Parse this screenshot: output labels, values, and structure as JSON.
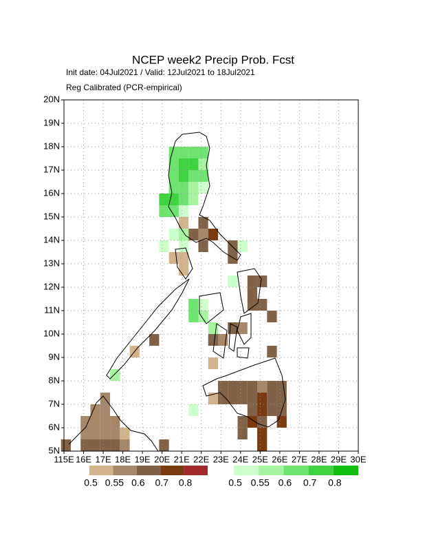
{
  "chart_data": {
    "type": "grid-map",
    "title": "NCEP week2 Precip Prob. Fcst",
    "subtitle": "Init date: 04Jul2021 / Valid: 12Jul2021 to 18Jul2021",
    "note": "Reg Calibrated (PCR-empirical)",
    "xlim": [
      115,
      130
    ],
    "ylim": [
      5,
      20
    ],
    "xticks": [
      {
        "value": 115,
        "label": "115E"
      },
      {
        "value": 116,
        "label": "16E"
      },
      {
        "value": 117,
        "label": "17E"
      },
      {
        "value": 118,
        "label": "18E"
      },
      {
        "value": 119,
        "label": "19E"
      },
      {
        "value": 120,
        "label": "20E"
      },
      {
        "value": 121,
        "label": "21E"
      },
      {
        "value": 122,
        "label": "22E"
      },
      {
        "value": 123,
        "label": "23E"
      },
      {
        "value": 124,
        "label": "24E"
      },
      {
        "value": 125,
        "label": "25E"
      },
      {
        "value": 126,
        "label": "26E"
      },
      {
        "value": 127,
        "label": "27E"
      },
      {
        "value": 128,
        "label": "28E"
      },
      {
        "value": 129,
        "label": "29E"
      },
      {
        "value": 130,
        "label": "30E"
      }
    ],
    "yticks": [
      {
        "value": 5,
        "label": "5N"
      },
      {
        "value": 6,
        "label": "6N"
      },
      {
        "value": 7,
        "label": "7N"
      },
      {
        "value": 8,
        "label": "8N"
      },
      {
        "value": 9,
        "label": "9N"
      },
      {
        "value": 10,
        "label": "10N"
      },
      {
        "value": 11,
        "label": "11N"
      },
      {
        "value": 12,
        "label": "12N"
      },
      {
        "value": 13,
        "label": "13N"
      },
      {
        "value": 14,
        "label": "14N"
      },
      {
        "value": 15,
        "label": "15N"
      },
      {
        "value": 16,
        "label": "16N"
      },
      {
        "value": 17,
        "label": "17N"
      },
      {
        "value": 18,
        "label": "18N"
      },
      {
        "value": 19,
        "label": "19N"
      },
      {
        "value": 20,
        "label": "20N"
      }
    ],
    "grid": true,
    "legend_brown": {
      "levels": [
        0.5,
        0.55,
        0.6,
        0.7,
        0.8
      ],
      "colors": [
        "#d2b48c",
        "#a5876a",
        "#7f6248",
        "#7a3b10",
        "#a12a2a"
      ]
    },
    "legend_green": {
      "levels": [
        0.5,
        0.55,
        0.6,
        0.7,
        0.8
      ],
      "colors": [
        "#ccffcc",
        "#a6f4a0",
        "#6fe36f",
        "#3fd43f",
        "#10bf10"
      ]
    },
    "cells_green": [
      [
        120.6,
        17.75,
        0.6
      ],
      [
        121.1,
        17.75,
        0.6
      ],
      [
        121.6,
        17.75,
        0.6
      ],
      [
        122.1,
        17.75,
        0.6
      ],
      [
        120.6,
        17.25,
        0.6
      ],
      [
        121.1,
        17.25,
        0.7
      ],
      [
        121.6,
        17.25,
        0.7
      ],
      [
        122.1,
        17.25,
        0.55
      ],
      [
        120.6,
        16.75,
        0.6
      ],
      [
        121.1,
        16.75,
        0.7
      ],
      [
        121.6,
        16.75,
        0.6
      ],
      [
        122.1,
        16.75,
        0.6
      ],
      [
        120.6,
        16.25,
        0.6
      ],
      [
        121.1,
        16.25,
        0.6
      ],
      [
        121.6,
        16.25,
        0.55
      ],
      [
        122.1,
        16.25,
        0.5
      ],
      [
        120.1,
        15.75,
        0.7
      ],
      [
        120.6,
        15.75,
        0.7
      ],
      [
        121.1,
        15.75,
        0.6
      ],
      [
        121.6,
        15.75,
        0.55
      ],
      [
        120.1,
        15.25,
        0.6
      ],
      [
        120.6,
        15.25,
        0.6
      ],
      [
        121.1,
        15.25,
        0.5
      ],
      [
        120.6,
        14.25,
        0.5
      ],
      [
        121.1,
        14.25,
        0.55
      ],
      [
        120.1,
        13.75,
        0.5
      ],
      [
        121.1,
        13.75,
        0.5
      ],
      [
        121.6,
        11.25,
        0.6
      ],
      [
        122.1,
        11.25,
        0.5
      ],
      [
        121.6,
        10.75,
        0.6
      ],
      [
        122.1,
        10.75,
        0.55
      ],
      [
        122.6,
        10.25,
        0.55
      ],
      [
        124.1,
        13.75,
        0.5
      ],
      [
        123.6,
        12.25,
        0.5
      ],
      [
        117.6,
        8.25,
        0.55
      ],
      [
        121.6,
        6.75,
        0.5
      ]
    ],
    "cells_brown": [
      [
        121.1,
        14.75,
        0.5
      ],
      [
        122.1,
        14.75,
        0.6
      ],
      [
        121.6,
        14.25,
        0.6
      ],
      [
        122.1,
        14.25,
        0.55
      ],
      [
        122.6,
        14.25,
        0.7
      ],
      [
        122.1,
        13.75,
        0.6
      ],
      [
        123.6,
        13.75,
        0.6
      ],
      [
        120.6,
        13.25,
        0.5
      ],
      [
        121.1,
        13.25,
        0.5
      ],
      [
        123.6,
        13.25,
        0.6
      ],
      [
        121.1,
        12.75,
        0.5
      ],
      [
        124.6,
        12.25,
        0.6
      ],
      [
        125.1,
        12.25,
        0.6
      ],
      [
        124.6,
        11.75,
        0.6
      ],
      [
        124.6,
        11.25,
        0.6
      ],
      [
        125.1,
        11.25,
        0.6
      ],
      [
        125.6,
        10.75,
        0.6
      ],
      [
        123.6,
        10.25,
        0.6
      ],
      [
        124.1,
        10.25,
        0.55
      ],
      [
        119.6,
        9.75,
        0.6
      ],
      [
        122.6,
        9.75,
        0.6
      ],
      [
        123.1,
        9.75,
        0.55
      ],
      [
        118.6,
        9.25,
        0.5
      ],
      [
        125.6,
        9.25,
        0.6
      ],
      [
        122.6,
        8.75,
        0.5
      ],
      [
        123.1,
        7.75,
        0.6
      ],
      [
        123.6,
        7.75,
        0.6
      ],
      [
        124.1,
        7.75,
        0.6
      ],
      [
        124.6,
        7.75,
        0.6
      ],
      [
        125.1,
        7.75,
        0.55
      ],
      [
        125.6,
        7.75,
        0.6
      ],
      [
        126.1,
        7.75,
        0.6
      ],
      [
        122.6,
        7.25,
        0.5
      ],
      [
        123.1,
        7.25,
        0.6
      ],
      [
        123.6,
        7.25,
        0.6
      ],
      [
        124.1,
        7.25,
        0.6
      ],
      [
        124.6,
        7.25,
        0.6
      ],
      [
        125.1,
        7.25,
        0.7
      ],
      [
        125.6,
        7.25,
        0.6
      ],
      [
        126.1,
        7.25,
        0.6
      ],
      [
        124.6,
        6.75,
        0.6
      ],
      [
        125.1,
        6.75,
        0.7
      ],
      [
        125.6,
        6.75,
        0.6
      ],
      [
        126.1,
        6.75,
        0.6
      ],
      [
        124.1,
        6.25,
        0.6
      ],
      [
        124.6,
        6.25,
        0.7
      ],
      [
        125.1,
        6.25,
        0.6
      ],
      [
        126.1,
        6.25,
        0.7
      ],
      [
        124.1,
        5.75,
        0.6
      ],
      [
        125.1,
        5.75,
        0.7
      ],
      [
        125.1,
        5.25,
        0.7
      ],
      [
        117.1,
        7.25,
        0.55
      ],
      [
        116.6,
        6.75,
        0.55
      ],
      [
        117.1,
        6.75,
        0.55
      ],
      [
        116.1,
        6.25,
        0.55
      ],
      [
        116.6,
        6.25,
        0.55
      ],
      [
        117.1,
        6.25,
        0.55
      ],
      [
        117.6,
        6.25,
        0.55
      ],
      [
        116.1,
        5.75,
        0.55
      ],
      [
        116.6,
        5.75,
        0.55
      ],
      [
        117.1,
        5.75,
        0.55
      ],
      [
        117.6,
        5.75,
        0.55
      ],
      [
        118.1,
        5.75,
        0.5
      ],
      [
        115.1,
        5.25,
        0.6
      ],
      [
        116.1,
        5.25,
        0.6
      ],
      [
        116.6,
        5.25,
        0.6
      ],
      [
        117.1,
        5.25,
        0.6
      ],
      [
        117.6,
        5.25,
        0.6
      ],
      [
        118.1,
        5.25,
        0.55
      ],
      [
        120.1,
        5.25,
        0.6
      ]
    ]
  }
}
